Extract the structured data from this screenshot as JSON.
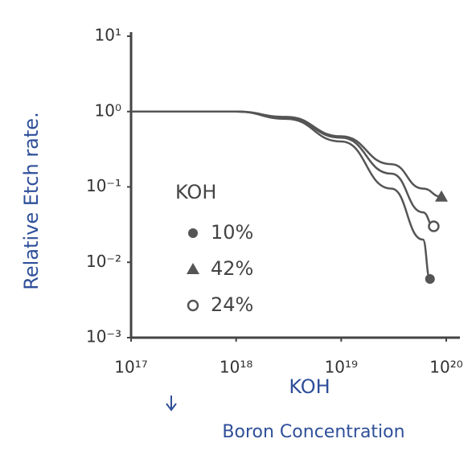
{
  "chart_data": {
    "type": "line",
    "ylabel": "Relative Etch rate.",
    "xlabel": "Boron Concentration",
    "xlabel_note": "KOH",
    "legend_title": "KOH",
    "xscale": "log",
    "yscale": "log",
    "xlim": [
      1e+17,
      1e+20
    ],
    "ylim": [
      0.001,
      10
    ],
    "xticks": [
      {
        "value": 1e+17,
        "label": "10¹⁷"
      },
      {
        "value": 1e+18,
        "label": "10¹⁸"
      },
      {
        "value": 1e+19,
        "label": "10¹⁹"
      },
      {
        "value": 1e+20,
        "label": "10²⁰"
      }
    ],
    "yticks": [
      {
        "value": 0.001,
        "label": "10⁻³"
      },
      {
        "value": 0.01,
        "label": "10⁻²"
      },
      {
        "value": 0.1,
        "label": "10⁻¹"
      },
      {
        "value": 1,
        "label": "10⁰"
      },
      {
        "value": 10,
        "label": "10¹"
      }
    ],
    "series": [
      {
        "name": "10%",
        "color": "#555555",
        "marker": "circle-filled",
        "x": [
          1e+17,
          1e+18,
          3e+18,
          1e+19,
          3e+19,
          6e+19,
          7e+19
        ],
        "values": [
          1,
          1,
          0.8,
          0.4,
          0.095,
          0.02,
          0.006
        ]
      },
      {
        "name": "42%",
        "color": "#555555",
        "marker": "triangle",
        "x": [
          1e+17,
          1e+18,
          3e+18,
          1e+19,
          3e+19,
          6e+19,
          9e+19
        ],
        "values": [
          1,
          1,
          0.85,
          0.47,
          0.2,
          0.095,
          0.074
        ]
      },
      {
        "name": "24%",
        "color": "#555555",
        "marker": "circle-open",
        "x": [
          1e+17,
          1e+18,
          3e+18,
          1e+19,
          3e+19,
          6e+19,
          7.6e+19
        ],
        "values": [
          1,
          1,
          0.82,
          0.45,
          0.15,
          0.046,
          0.03
        ]
      }
    ]
  }
}
